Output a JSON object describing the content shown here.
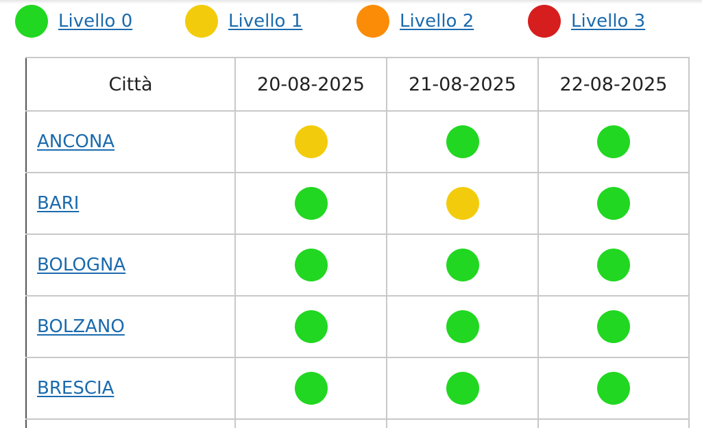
{
  "colors": {
    "level0": "#21d721",
    "level1": "#f2cc0c",
    "level2": "#fb8c08",
    "level3": "#d61e1e"
  },
  "legend": [
    {
      "label": "Livello 0",
      "color": "#21d721"
    },
    {
      "label": "Livello 1",
      "color": "#f2cc0c"
    },
    {
      "label": "Livello 2",
      "color": "#fb8c08"
    },
    {
      "label": "Livello 3",
      "color": "#d61e1e"
    }
  ],
  "table": {
    "headers": [
      "Città",
      "20-08-2025",
      "21-08-2025",
      "22-08-2025"
    ],
    "rows": [
      {
        "city": "ANCONA",
        "levels": [
          1,
          0,
          0
        ]
      },
      {
        "city": "BARI",
        "levels": [
          0,
          1,
          0
        ]
      },
      {
        "city": "BOLOGNA",
        "levels": [
          0,
          0,
          0
        ]
      },
      {
        "city": "BOLZANO",
        "levels": [
          0,
          0,
          0
        ]
      },
      {
        "city": "BRESCIA",
        "levels": [
          0,
          0,
          0
        ]
      }
    ]
  }
}
